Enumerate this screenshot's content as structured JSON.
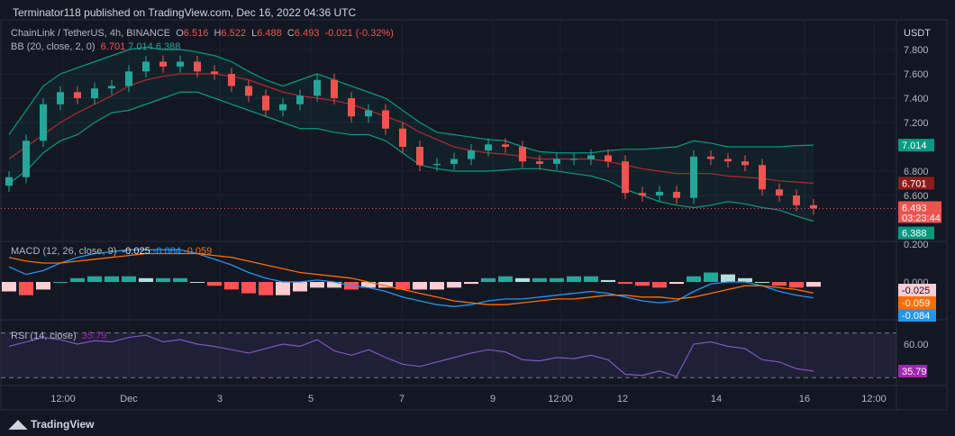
{
  "header": {
    "published": "Terminator118 published on TradingView.com, Dec 16, 2022 04:36 UTC"
  },
  "legend": {
    "symbol": "ChainLink / TetherUS, 4h, BINANCE",
    "o_label": "O",
    "o": "6.516",
    "h_label": "H",
    "h": "6.522",
    "l_label": "L",
    "l": "6.488",
    "c_label": "C",
    "c": "6.493",
    "change": "-0.021 (-0.32%)",
    "bb_label": "BB (20, close, 2, 0)",
    "bb_mid": "6.701",
    "bb_up": "7.014",
    "bb_low": "6.388",
    "macd_label": "MACD (12, 26, close, 9)",
    "macd_hist": "-0.025",
    "macd_line": "-0.084",
    "macd_signal": "-0.059",
    "rsi_label": "RSI (14, close)",
    "rsi": "35.79"
  },
  "footer": {
    "brand": "TradingView"
  },
  "colors": {
    "up": "#26a69a",
    "down": "#ef5350",
    "bb": "#089981",
    "bb_mid": "#b22833",
    "macd": "#2196f3",
    "signal": "#ff6d00",
    "rsi": "#7e57c2"
  },
  "chart_data": {
    "type": "candlestick",
    "currency": "USDT",
    "price_ticks": [
      "7.800",
      "7.600",
      "7.400",
      "7.200",
      "6.800",
      "6.600"
    ],
    "price_badges": [
      {
        "label": "7.014",
        "value": 7.014,
        "color": "#089981"
      },
      {
        "label": "6.701",
        "value": 6.701,
        "color": "#8c1d1d"
      },
      {
        "label": "6.493",
        "sub": "03:23:44",
        "value": 6.493,
        "color": "#ef5350"
      },
      {
        "label": "6.388",
        "value": 6.388,
        "color": "#089981"
      }
    ],
    "macd_ticks": [
      "0.200",
      "0.000"
    ],
    "macd_badges": [
      {
        "label": "-0.025",
        "color": "#ffcdd2",
        "text": "#131722"
      },
      {
        "label": "-0.059",
        "color": "#ff6d00",
        "text": "#fff"
      },
      {
        "label": "-0.084",
        "color": "#2196f3",
        "text": "#fff"
      }
    ],
    "rsi_ticks": [
      "60.00"
    ],
    "rsi_badge": {
      "label": "35.79",
      "color": "#9c27b0"
    },
    "time_ticks": [
      "12:00",
      "Dec",
      "3",
      "5",
      "7",
      "9",
      "12:00",
      "12",
      "14",
      "16",
      "12:00"
    ],
    "closes": [
      6.75,
      7.05,
      7.35,
      7.45,
      7.4,
      7.48,
      7.5,
      7.62,
      7.7,
      7.66,
      7.7,
      7.62,
      7.6,
      7.5,
      7.42,
      7.3,
      7.35,
      7.42,
      7.55,
      7.4,
      7.25,
      7.3,
      7.15,
      7.0,
      6.85,
      6.86,
      6.9,
      6.97,
      7.02,
      7.0,
      6.88,
      6.86,
      6.9,
      6.9,
      6.93,
      6.88,
      6.62,
      6.6,
      6.63,
      6.58,
      6.92,
      6.9,
      6.88,
      6.85,
      6.65,
      6.6,
      6.52,
      6.493
    ],
    "open_first": 6.68,
    "bb_upper": [
      7.1,
      7.3,
      7.5,
      7.6,
      7.65,
      7.7,
      7.75,
      7.8,
      7.82,
      7.8,
      7.8,
      7.78,
      7.75,
      7.7,
      7.62,
      7.55,
      7.5,
      7.55,
      7.6,
      7.55,
      7.5,
      7.45,
      7.4,
      7.3,
      7.2,
      7.12,
      7.1,
      7.08,
      7.06,
      7.05,
      7.0,
      6.96,
      6.95,
      6.95,
      6.95,
      6.97,
      6.98,
      6.98,
      6.99,
      7.0,
      7.05,
      7.03,
      7.0,
      7.0,
      7.0,
      7.0,
      7.01,
      7.014
    ],
    "bb_middle": [
      6.9,
      7.0,
      7.1,
      7.2,
      7.28,
      7.35,
      7.42,
      7.5,
      7.55,
      7.58,
      7.6,
      7.6,
      7.6,
      7.58,
      7.55,
      7.5,
      7.45,
      7.42,
      7.4,
      7.38,
      7.35,
      7.3,
      7.25,
      7.2,
      7.12,
      7.06,
      7.0,
      6.97,
      6.95,
      6.94,
      6.92,
      6.9,
      6.9,
      6.9,
      6.9,
      6.88,
      6.85,
      6.82,
      6.8,
      6.78,
      6.78,
      6.78,
      6.76,
      6.75,
      6.74,
      6.72,
      6.71,
      6.701
    ],
    "bb_lower": [
      6.7,
      6.8,
      6.95,
      7.05,
      7.1,
      7.2,
      7.28,
      7.3,
      7.35,
      7.4,
      7.45,
      7.45,
      7.4,
      7.35,
      7.3,
      7.25,
      7.2,
      7.15,
      7.15,
      7.12,
      7.1,
      7.1,
      7.05,
      6.95,
      6.85,
      6.82,
      6.8,
      6.8,
      6.8,
      6.81,
      6.82,
      6.82,
      6.8,
      6.78,
      6.76,
      6.72,
      6.65,
      6.6,
      6.55,
      6.52,
      6.5,
      6.52,
      6.55,
      6.53,
      6.5,
      6.48,
      6.43,
      6.388
    ],
    "macd": [
      0.08,
      0.04,
      0.06,
      0.1,
      0.13,
      0.15,
      0.16,
      0.17,
      0.17,
      0.17,
      0.17,
      0.15,
      0.12,
      0.09,
      0.05,
      0.02,
      0.0,
      0.0,
      0.01,
      0.0,
      -0.02,
      -0.03,
      -0.05,
      -0.08,
      -0.1,
      -0.12,
      -0.13,
      -0.12,
      -0.1,
      -0.09,
      -0.09,
      -0.08,
      -0.07,
      -0.06,
      -0.05,
      -0.06,
      -0.08,
      -0.1,
      -0.11,
      -0.1,
      -0.05,
      -0.01,
      0.0,
      0.0,
      -0.02,
      -0.05,
      -0.07,
      -0.084
    ],
    "signal": [
      0.13,
      0.11,
      0.1,
      0.1,
      0.11,
      0.12,
      0.13,
      0.14,
      0.15,
      0.15,
      0.15,
      0.15,
      0.14,
      0.13,
      0.11,
      0.09,
      0.07,
      0.05,
      0.04,
      0.03,
      0.02,
      0.0,
      -0.02,
      -0.04,
      -0.06,
      -0.08,
      -0.1,
      -0.11,
      -0.12,
      -0.12,
      -0.11,
      -0.1,
      -0.09,
      -0.09,
      -0.08,
      -0.07,
      -0.07,
      -0.08,
      -0.08,
      -0.09,
      -0.08,
      -0.06,
      -0.04,
      -0.02,
      -0.02,
      -0.03,
      -0.04,
      -0.059
    ],
    "hist": [
      -0.05,
      -0.07,
      -0.04,
      0.0,
      0.02,
      0.03,
      0.03,
      0.03,
      0.02,
      0.02,
      0.02,
      0.0,
      -0.02,
      -0.04,
      -0.06,
      -0.07,
      -0.07,
      -0.05,
      -0.03,
      -0.03,
      -0.04,
      -0.03,
      -0.03,
      -0.04,
      -0.04,
      -0.04,
      -0.03,
      -0.01,
      0.02,
      0.03,
      0.02,
      0.02,
      0.02,
      0.03,
      0.03,
      0.01,
      -0.01,
      -0.02,
      -0.03,
      -0.01,
      0.03,
      0.05,
      0.04,
      0.02,
      0.0,
      -0.02,
      -0.03,
      -0.025
    ],
    "rsi": [
      58,
      62,
      66,
      64,
      60,
      63,
      62,
      66,
      68,
      62,
      64,
      60,
      58,
      55,
      52,
      56,
      60,
      58,
      64,
      54,
      50,
      55,
      48,
      42,
      40,
      44,
      48,
      52,
      55,
      53,
      46,
      45,
      48,
      47,
      50,
      46,
      33,
      32,
      36,
      31,
      60,
      62,
      58,
      56,
      46,
      44,
      38,
      35.79
    ],
    "rsi_levels": [
      70,
      30
    ]
  }
}
